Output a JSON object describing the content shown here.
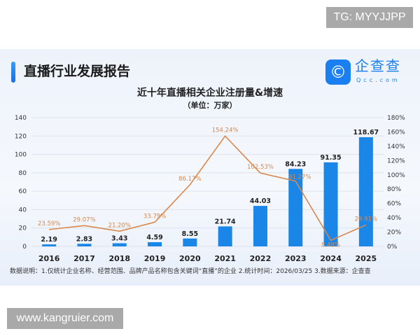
{
  "watermark_top": "TG: MYYJJPP",
  "watermark_bottom": "www.kangruier.com",
  "header": {
    "title": "直播行业发展报告",
    "logo_name": "企查查",
    "logo_url": "Qcc.com"
  },
  "note": "数据说明：1.仅统计企业名称、经营范围、品牌产品名称包含关键词“直播”的企业  2.统计时间：2026/03/25  3.数据来源：企查查",
  "chart_data": {
    "type": "bar+line",
    "title": "近十年直播相关企业注册量&增速",
    "subtitle": "（单位：万家）",
    "categories": [
      "2016",
      "2017",
      "2018",
      "2019",
      "2020",
      "2021",
      "2022",
      "2023",
      "2024",
      "2025"
    ],
    "series": [
      {
        "type": "bar",
        "axis": "left",
        "values": [
          2.19,
          2.83,
          3.43,
          4.59,
          8.55,
          21.74,
          44.03,
          84.23,
          91.35,
          118.67
        ],
        "labels": [
          "2.19",
          "2.83",
          "3.43",
          "4.59",
          "8.55",
          "21.74",
          "44.03",
          "84.23",
          "91.35",
          "118.67"
        ],
        "color": "#1a86e8"
      },
      {
        "type": "line",
        "axis": "right",
        "values": [
          23.59,
          29.07,
          21.2,
          33.79,
          86.17,
          154.24,
          102.53,
          91.27,
          8.46,
          29.91
        ],
        "labels": [
          "23.59%",
          "29.07%",
          "21.20%",
          "33.79%",
          "86.17%",
          "154.24%",
          "102.53%",
          "91.27%",
          "8.46%",
          "29.91%"
        ],
        "color": "#d9874a"
      }
    ],
    "ylim_left": [
      0,
      140
    ],
    "yticks_left": [
      "0",
      "20",
      "40",
      "60",
      "80",
      "100",
      "120",
      "140"
    ],
    "ylim_right": [
      0,
      180
    ],
    "yticks_right": [
      "0%",
      "20%",
      "40%",
      "60%",
      "80%",
      "100%",
      "120%",
      "140%",
      "160%",
      "180%"
    ],
    "grid": true
  }
}
